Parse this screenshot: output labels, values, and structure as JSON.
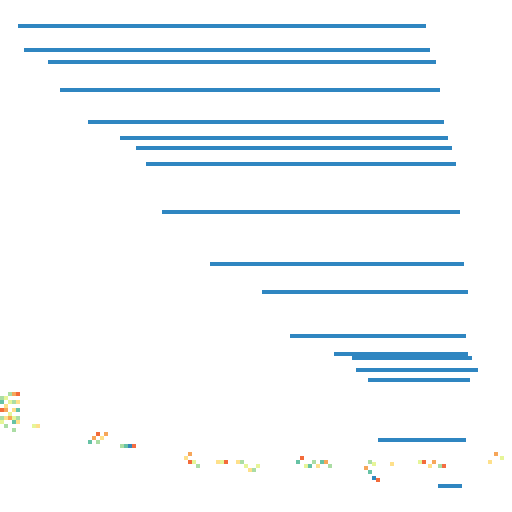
{
  "colors": {
    "background": "#ffffff",
    "line": "#2f86c1",
    "pixels": [
      "#f36b3a",
      "#f6a65a",
      "#fee08b",
      "#e6f598",
      "#abdda4",
      "#66c2a5",
      "#3288bd",
      "#f46d43"
    ]
  }
}
